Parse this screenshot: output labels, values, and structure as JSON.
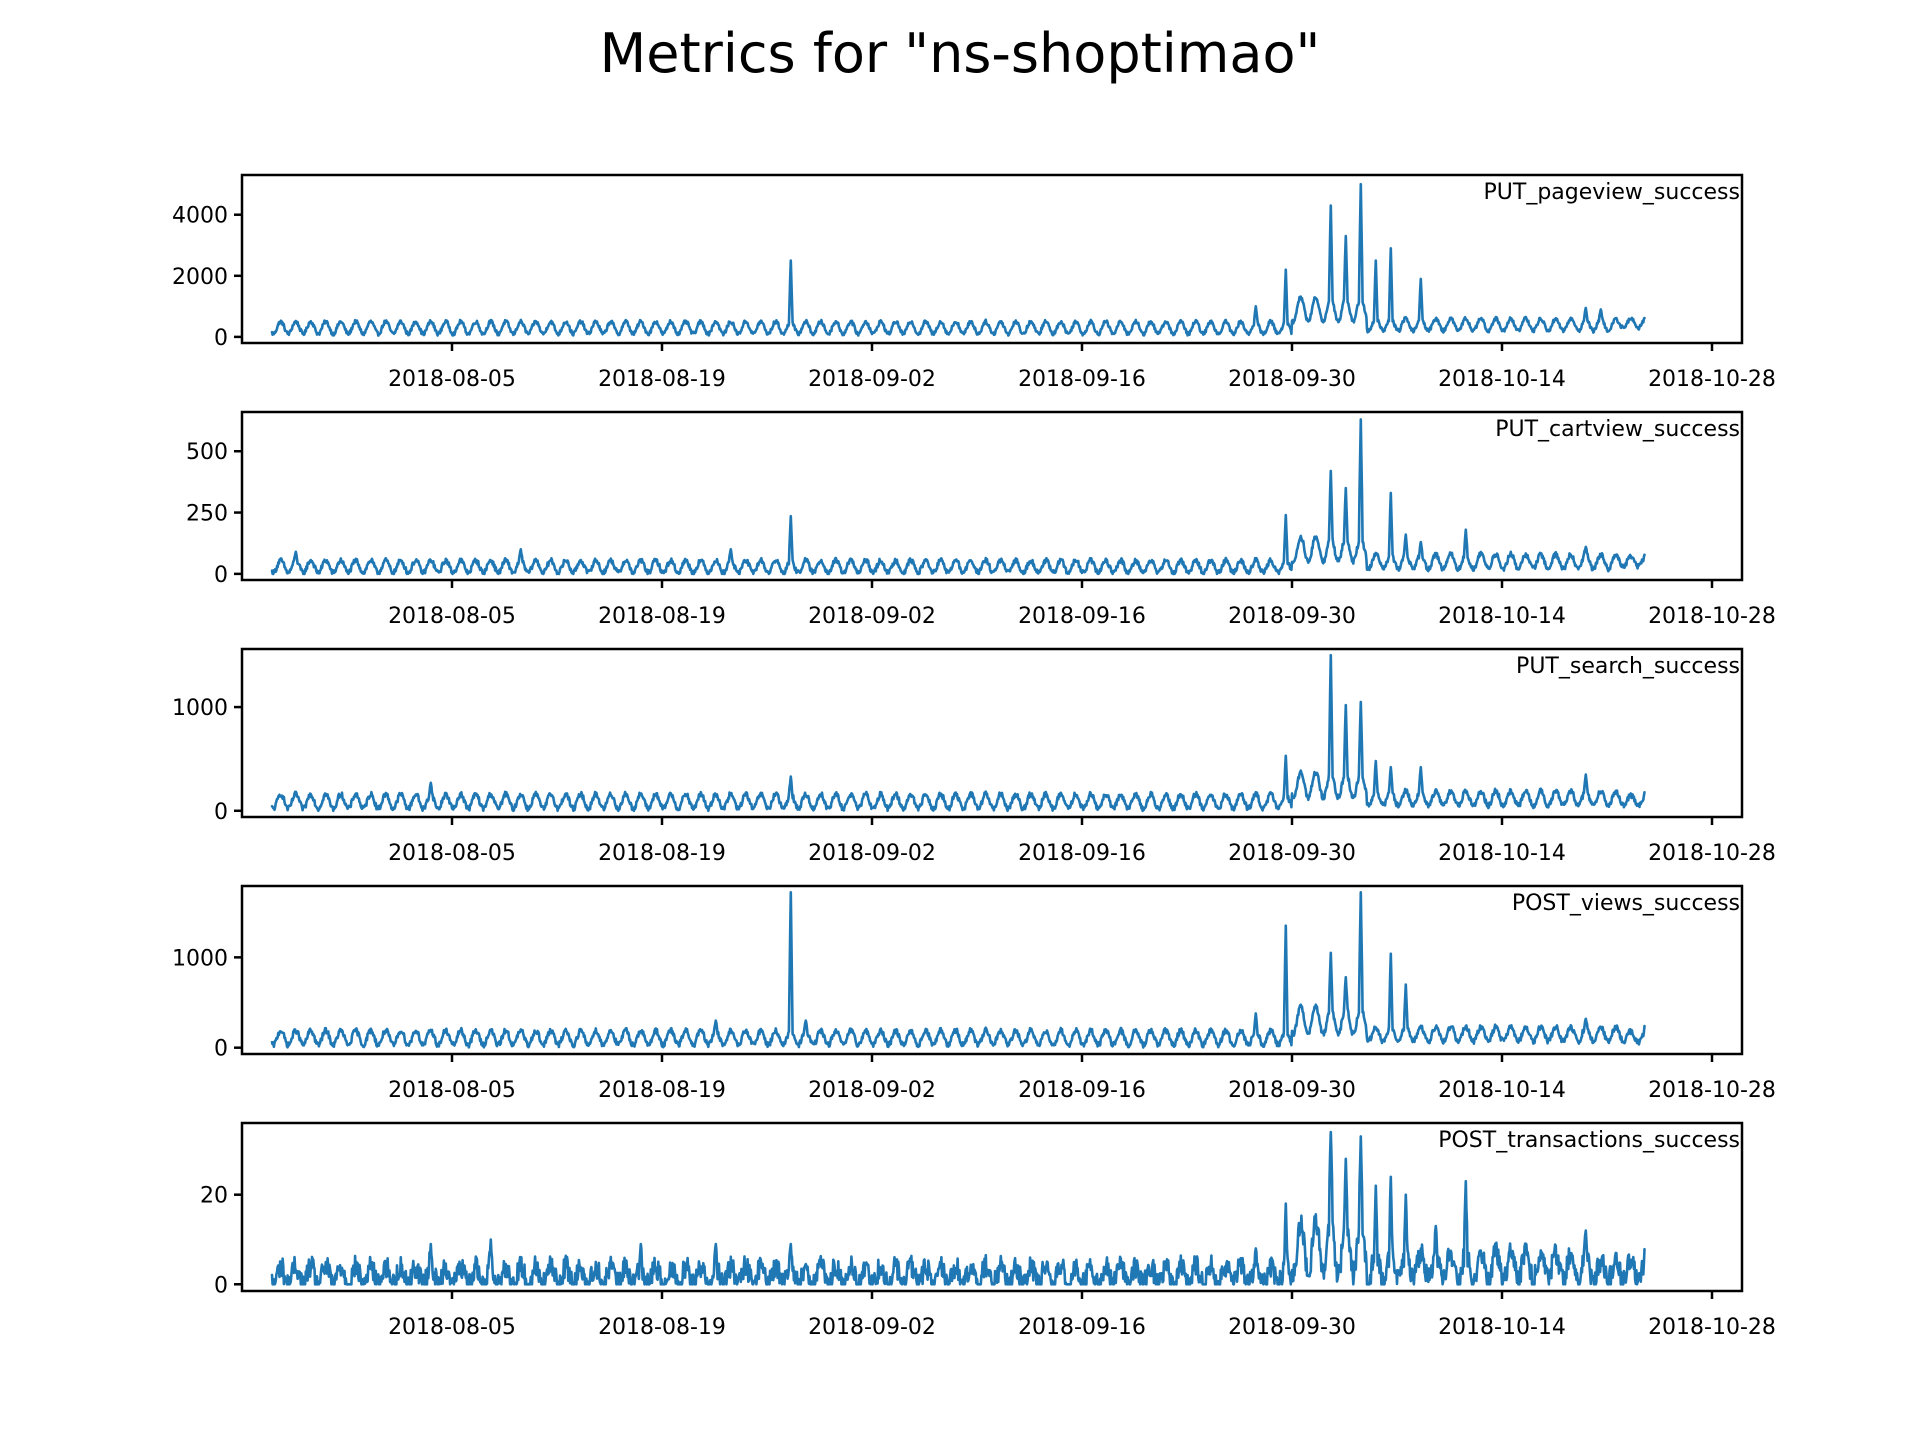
{
  "figure": {
    "title": "Metrics for \"ns-shoptimao\"",
    "line_color": "#1f77b4"
  },
  "chart_data": [
    {
      "type": "line",
      "label": "PUT_pageview_success",
      "x_range": [
        "2018-07-24",
        "2018-10-23"
      ],
      "xlim": [
        "2018-07-22",
        "2018-10-30"
      ],
      "ylim": [
        -200,
        5300
      ],
      "yticks": [
        0,
        2000,
        4000
      ],
      "xticks": [
        "2018-08-05",
        "2018-08-19",
        "2018-09-02",
        "2018-09-16",
        "2018-09-30",
        "2018-10-14",
        "2018-10-28"
      ],
      "base": 300,
      "amp": 200,
      "noise": 60,
      "segments": [
        [
          "2018-09-30",
          900,
          400
        ],
        [
          "2018-10-05",
          400,
          200
        ],
        [
          "2018-10-22",
          450,
          150
        ]
      ],
      "spikes": [
        [
          "2018-08-27",
          2500
        ],
        [
          "2018-08-27",
          1000
        ],
        [
          "2018-09-27",
          1000
        ],
        [
          "2018-09-29",
          2200
        ],
        [
          "2018-10-02",
          4300
        ],
        [
          "2018-10-03",
          3300
        ],
        [
          "2018-10-04",
          5000
        ],
        [
          "2018-10-04",
          2900
        ],
        [
          "2018-10-05",
          2500
        ],
        [
          "2018-10-06",
          2900
        ],
        [
          "2018-10-08",
          1900
        ],
        [
          "2018-10-19",
          950
        ],
        [
          "2018-10-20",
          900
        ],
        [
          "2018-10-23",
          800
        ]
      ]
    },
    {
      "type": "line",
      "label": "PUT_cartview_success",
      "x_range": [
        "2018-07-24",
        "2018-10-23"
      ],
      "xlim": [
        "2018-07-22",
        "2018-10-30"
      ],
      "ylim": [
        -25,
        660
      ],
      "yticks": [
        0,
        250,
        500
      ],
      "xticks": [
        "2018-08-05",
        "2018-08-19",
        "2018-09-02",
        "2018-09-16",
        "2018-09-30",
        "2018-10-14",
        "2018-10-28"
      ],
      "base": 30,
      "amp": 25,
      "noise": 10,
      "segments": [
        [
          "2018-09-30",
          100,
          50
        ],
        [
          "2018-10-05",
          50,
          30
        ],
        [
          "2018-10-22",
          50,
          20
        ]
      ],
      "spikes": [
        [
          "2018-07-25",
          90
        ],
        [
          "2018-08-09",
          100
        ],
        [
          "2018-08-23",
          100
        ],
        [
          "2018-08-27",
          235
        ],
        [
          "2018-08-27",
          110
        ],
        [
          "2018-09-29",
          240
        ],
        [
          "2018-10-02",
          420
        ],
        [
          "2018-10-03",
          350
        ],
        [
          "2018-10-04",
          630
        ],
        [
          "2018-10-04",
          380
        ],
        [
          "2018-10-06",
          330
        ],
        [
          "2018-10-07",
          160
        ],
        [
          "2018-10-08",
          130
        ],
        [
          "2018-10-11",
          180
        ],
        [
          "2018-10-19",
          110
        ],
        [
          "2018-10-23",
          120
        ]
      ]
    },
    {
      "type": "line",
      "label": "PUT_search_success",
      "x_range": [
        "2018-07-24",
        "2018-10-23"
      ],
      "xlim": [
        "2018-07-22",
        "2018-10-30"
      ],
      "ylim": [
        -60,
        1560
      ],
      "yticks": [
        0,
        1000
      ],
      "xticks": [
        "2018-08-05",
        "2018-08-19",
        "2018-09-02",
        "2018-09-16",
        "2018-09-30",
        "2018-10-14",
        "2018-10-28"
      ],
      "base": 90,
      "amp": 70,
      "noise": 25,
      "segments": [
        [
          "2018-09-30",
          250,
          120
        ],
        [
          "2018-10-05",
          120,
          70
        ],
        [
          "2018-10-22",
          100,
          50
        ]
      ],
      "spikes": [
        [
          "2018-08-03",
          270
        ],
        [
          "2018-08-27",
          330
        ],
        [
          "2018-09-29",
          530
        ],
        [
          "2018-10-02",
          1500
        ],
        [
          "2018-10-03",
          1020
        ],
        [
          "2018-10-04",
          1050
        ],
        [
          "2018-10-04",
          650
        ],
        [
          "2018-10-05",
          480
        ],
        [
          "2018-10-06",
          420
        ],
        [
          "2018-10-08",
          420
        ],
        [
          "2018-10-19",
          350
        ],
        [
          "2018-10-23",
          200
        ]
      ]
    },
    {
      "type": "line",
      "label": "POST_views_success",
      "x_range": [
        "2018-07-24",
        "2018-10-23"
      ],
      "xlim": [
        "2018-07-22",
        "2018-10-30"
      ],
      "ylim": [
        -70,
        1790
      ],
      "yticks": [
        0,
        1000
      ],
      "xticks": [
        "2018-08-05",
        "2018-08-19",
        "2018-09-02",
        "2018-09-16",
        "2018-09-30",
        "2018-10-14",
        "2018-10-28"
      ],
      "base": 110,
      "amp": 80,
      "noise": 30,
      "segments": [
        [
          "2018-09-30",
          300,
          150
        ],
        [
          "2018-10-05",
          150,
          80
        ],
        [
          "2018-10-22",
          120,
          60
        ]
      ],
      "spikes": [
        [
          "2018-08-22",
          300
        ],
        [
          "2018-08-27",
          1720
        ],
        [
          "2018-08-27",
          650
        ],
        [
          "2018-08-28",
          300
        ],
        [
          "2018-09-27",
          380
        ],
        [
          "2018-09-29",
          1350
        ],
        [
          "2018-10-02",
          1050
        ],
        [
          "2018-10-03",
          780
        ],
        [
          "2018-10-04",
          1720
        ],
        [
          "2018-10-04",
          980
        ],
        [
          "2018-10-06",
          1040
        ],
        [
          "2018-10-07",
          700
        ],
        [
          "2018-10-19",
          320
        ],
        [
          "2018-10-23",
          320
        ]
      ]
    },
    {
      "type": "line",
      "label": "POST_transactions_success",
      "x_range": [
        "2018-07-24",
        "2018-10-23"
      ],
      "xlim": [
        "2018-07-22",
        "2018-10-30"
      ],
      "ylim": [
        -1.5,
        36
      ],
      "yticks": [
        0,
        20
      ],
      "xticks": [
        "2018-08-05",
        "2018-08-19",
        "2018-09-02",
        "2018-09-16",
        "2018-09-30",
        "2018-10-14",
        "2018-10-28"
      ],
      "base": 2,
      "amp": 2,
      "noise": 2.5,
      "segments": [
        [
          "2018-09-30",
          8,
          6
        ],
        [
          "2018-10-05",
          4,
          3
        ],
        [
          "2018-10-20",
          3,
          2
        ]
      ],
      "spikes": [
        [
          "2018-08-03",
          9
        ],
        [
          "2018-08-07",
          10
        ],
        [
          "2018-08-17",
          9
        ],
        [
          "2018-08-22",
          9
        ],
        [
          "2018-08-27",
          9
        ],
        [
          "2018-09-27",
          8
        ],
        [
          "2018-09-29",
          18
        ],
        [
          "2018-10-02",
          34
        ],
        [
          "2018-10-02",
          30
        ],
        [
          "2018-10-03",
          28
        ],
        [
          "2018-10-04",
          33
        ],
        [
          "2018-10-04",
          25
        ],
        [
          "2018-10-05",
          22
        ],
        [
          "2018-10-06",
          24
        ],
        [
          "2018-10-07",
          20
        ],
        [
          "2018-10-09",
          13
        ],
        [
          "2018-10-11",
          23
        ],
        [
          "2018-10-11",
          15
        ],
        [
          "2018-10-19",
          12
        ],
        [
          "2018-10-21",
          7
        ],
        [
          "2018-10-23",
          10
        ]
      ]
    }
  ]
}
